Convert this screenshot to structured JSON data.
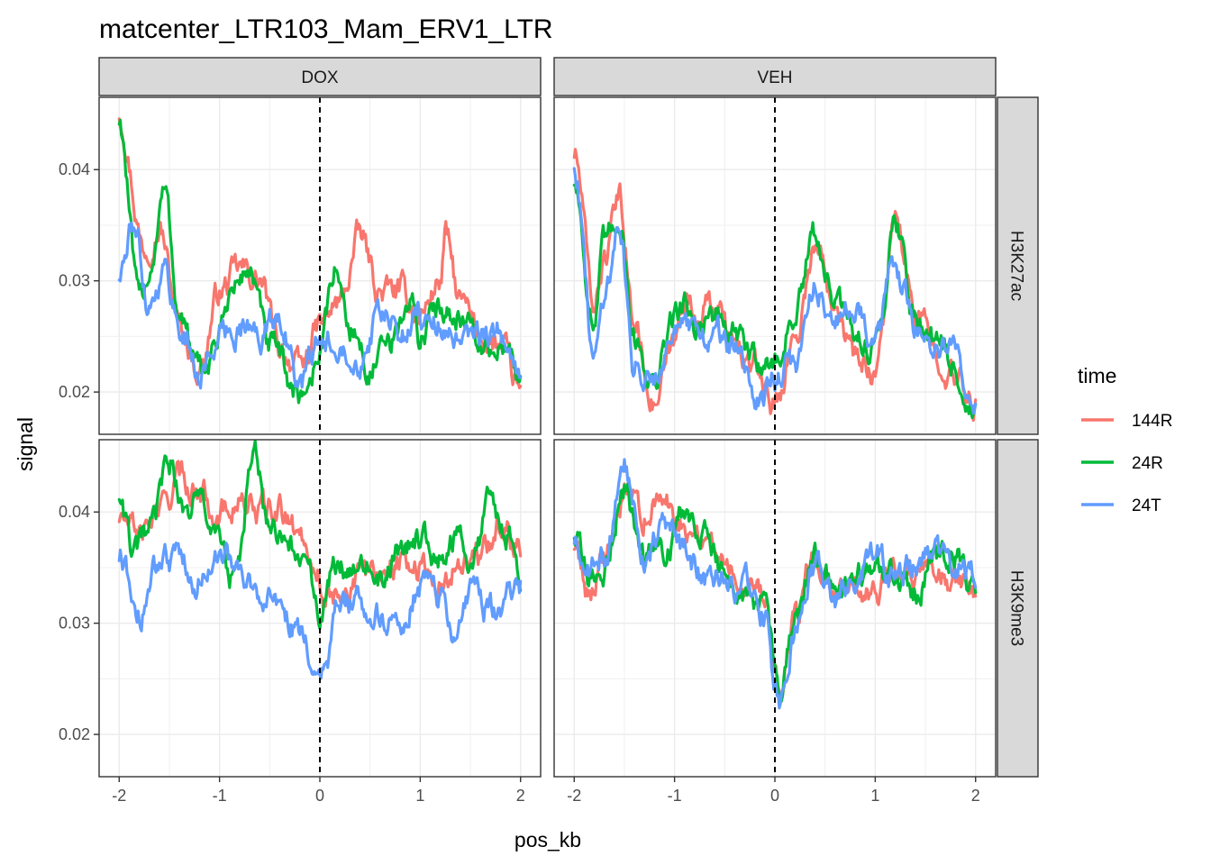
{
  "chart_data": {
    "type": "line",
    "title": "matcenter_LTR103_Mam_ERV1_LTR",
    "xlabel": "pos_kb",
    "ylabel": "signal",
    "xlim": [
      -2.2,
      2.2
    ],
    "x_ticks": [
      -2,
      -1,
      0,
      1,
      2
    ],
    "x_tick_labels": [
      "-2",
      "-1",
      "0",
      "1",
      "2"
    ],
    "y_ticks": [
      0.02,
      0.03,
      0.04
    ],
    "y_tick_labels": [
      "0.02",
      "0.03",
      "0.04"
    ],
    "vline_x": 0,
    "vline_style": "dashed",
    "grid": true,
    "legend": {
      "title": "time",
      "placement": "right",
      "entries": [
        "144R",
        "24R",
        "24T"
      ]
    },
    "colors": {
      "144R": "#F8766D",
      "24R": "#00BA38",
      "24T": "#619CFF"
    },
    "column_strips": [
      "DOX",
      "VEH"
    ],
    "row_strips": [
      "H3K27ac",
      "H3K9me3"
    ],
    "panels": [
      {
        "column": "DOX",
        "row": "H3K27ac",
        "ylim": [
          0.0162,
          0.0465
        ],
        "series": [
          {
            "name": "144R",
            "x": [
              -2,
              -1.75,
              -1.6,
              -1.4,
              -1.2,
              -1.0,
              -0.8,
              -0.6,
              -0.4,
              -0.2,
              0,
              0.2,
              0.4,
              0.6,
              0.8,
              1.0,
              1.2,
              1.25,
              1.4,
              1.6,
              1.8,
              2.0
            ],
            "values": [
              0.045,
              0.033,
              0.035,
              0.026,
              0.022,
              0.029,
              0.031,
              0.03,
              0.024,
              0.022,
              0.026,
              0.028,
              0.034,
              0.029,
              0.029,
              0.027,
              0.03,
              0.034,
              0.028,
              0.025,
              0.024,
              0.02
            ]
          },
          {
            "name": "24R",
            "x": [
              -2,
              -1.8,
              -1.7,
              -1.55,
              -1.4,
              -1.2,
              -1.0,
              -0.9,
              -0.7,
              -0.5,
              -0.2,
              -0.1,
              0,
              0.15,
              0.3,
              0.5,
              0.7,
              0.9,
              1.0,
              1.2,
              1.4,
              1.6,
              1.8,
              2.0
            ],
            "values": [
              0.0445,
              0.028,
              0.031,
              0.038,
              0.027,
              0.0215,
              0.025,
              0.029,
              0.031,
              0.024,
              0.0198,
              0.021,
              0.024,
              0.031,
              0.026,
              0.022,
              0.024,
              0.028,
              0.025,
              0.028,
              0.027,
              0.024,
              0.024,
              0.022
            ]
          },
          {
            "name": "24T",
            "x": [
              -2,
              -1.85,
              -1.7,
              -1.55,
              -1.4,
              -1.2,
              -1.0,
              -0.8,
              -0.6,
              -0.4,
              -0.2,
              0,
              0.2,
              0.4,
              0.6,
              0.8,
              1.0,
              1.2,
              1.4,
              1.6,
              1.8,
              2.0
            ],
            "values": [
              0.0305,
              0.035,
              0.028,
              0.031,
              0.026,
              0.0215,
              0.025,
              0.026,
              0.025,
              0.027,
              0.0205,
              0.024,
              0.025,
              0.023,
              0.027,
              0.025,
              0.027,
              0.026,
              0.024,
              0.025,
              0.025,
              0.021
            ]
          }
        ]
      },
      {
        "column": "VEH",
        "row": "H3K27ac",
        "ylim": [
          0.0162,
          0.0465
        ],
        "series": [
          {
            "name": "144R",
            "x": [
              -2,
              -1.8,
              -1.7,
              -1.55,
              -1.4,
              -1.2,
              -1.0,
              -0.9,
              -0.8,
              -0.6,
              -0.4,
              -0.2,
              0,
              0.2,
              0.4,
              0.6,
              0.8,
              1.0,
              1.2,
              1.4,
              1.6,
              1.8,
              2.0
            ],
            "values": [
              0.0415,
              0.028,
              0.032,
              0.037,
              0.026,
              0.019,
              0.024,
              0.029,
              0.027,
              0.028,
              0.024,
              0.022,
              0.019,
              0.025,
              0.033,
              0.029,
              0.023,
              0.022,
              0.035,
              0.027,
              0.024,
              0.021,
              0.019
            ]
          },
          {
            "name": "24R",
            "x": [
              -2,
              -1.8,
              -1.7,
              -1.55,
              -1.4,
              -1.2,
              -1.0,
              -0.9,
              -0.8,
              -0.6,
              -0.4,
              -0.2,
              0,
              0.2,
              0.4,
              0.6,
              0.8,
              1.0,
              1.2,
              1.4,
              1.6,
              1.8,
              2.0
            ],
            "values": [
              0.039,
              0.026,
              0.033,
              0.036,
              0.025,
              0.0205,
              0.027,
              0.028,
              0.026,
              0.027,
              0.025,
              0.023,
              0.0225,
              0.027,
              0.034,
              0.028,
              0.025,
              0.024,
              0.0355,
              0.027,
              0.025,
              0.022,
              0.018
            ]
          },
          {
            "name": "24T",
            "x": [
              -2,
              -1.8,
              -1.7,
              -1.55,
              -1.4,
              -1.2,
              -1.0,
              -0.8,
              -0.6,
              -0.4,
              -0.2,
              0,
              0.2,
              0.4,
              0.6,
              0.8,
              1.0,
              1.2,
              1.4,
              1.6,
              1.8,
              2.0
            ],
            "values": [
              0.0405,
              0.023,
              0.029,
              0.035,
              0.022,
              0.022,
              0.026,
              0.025,
              0.025,
              0.024,
              0.0195,
              0.0215,
              0.0225,
              0.03,
              0.026,
              0.028,
              0.025,
              0.031,
              0.026,
              0.024,
              0.0235,
              0.0185
            ]
          }
        ]
      },
      {
        "column": "DOX",
        "row": "H3K9me3",
        "ylim": [
          0.0162,
          0.0465
        ],
        "series": [
          {
            "name": "144R",
            "x": [
              -2,
              -1.8,
              -1.6,
              -1.4,
              -1.2,
              -1.0,
              -0.8,
              -0.6,
              -0.4,
              -0.2,
              -0.05,
              0.05,
              0.2,
              0.4,
              0.6,
              0.8,
              1.0,
              1.2,
              1.4,
              1.6,
              1.8,
              2.0
            ],
            "values": [
              0.0395,
              0.038,
              0.04,
              0.043,
              0.042,
              0.04,
              0.041,
              0.04,
              0.04,
              0.038,
              0.036,
              0.032,
              0.033,
              0.034,
              0.035,
              0.036,
              0.035,
              0.033,
              0.036,
              0.036,
              0.039,
              0.037
            ]
          },
          {
            "name": "24R",
            "x": [
              -2,
              -1.85,
              -1.7,
              -1.5,
              -1.35,
              -1.2,
              -1.0,
              -0.85,
              -0.65,
              -0.5,
              -0.3,
              -0.1,
              0,
              0.15,
              0.4,
              0.6,
              0.8,
              1.0,
              1.2,
              1.4,
              1.5,
              1.7,
              1.9,
              2.0
            ],
            "values": [
              0.0415,
              0.036,
              0.038,
              0.0445,
              0.04,
              0.041,
              0.037,
              0.034,
              0.045,
              0.038,
              0.037,
              0.034,
              0.031,
              0.0345,
              0.036,
              0.034,
              0.036,
              0.038,
              0.036,
              0.038,
              0.035,
              0.0405,
              0.038,
              0.035
            ]
          },
          {
            "name": "24T",
            "x": [
              -2,
              -1.8,
              -1.6,
              -1.4,
              -1.2,
              -1.0,
              -0.8,
              -0.6,
              -0.4,
              -0.2,
              0,
              0.05,
              0.2,
              0.4,
              0.6,
              0.8,
              1.0,
              1.2,
              1.3,
              1.5,
              1.7,
              1.9,
              2.0
            ],
            "values": [
              0.036,
              0.031,
              0.035,
              0.036,
              0.034,
              0.037,
              0.034,
              0.033,
              0.031,
              0.029,
              0.026,
              0.0265,
              0.0315,
              0.032,
              0.031,
              0.03,
              0.033,
              0.032,
              0.0285,
              0.033,
              0.031,
              0.0325,
              0.033
            ]
          }
        ]
      },
      {
        "column": "VEH",
        "row": "H3K9me3",
        "ylim": [
          0.0162,
          0.0465
        ],
        "series": [
          {
            "name": "144R",
            "x": [
              -2,
              -1.85,
              -1.7,
              -1.5,
              -1.3,
              -1.1,
              -0.9,
              -0.7,
              -0.5,
              -0.3,
              -0.1,
              0,
              0.05,
              0.2,
              0.4,
              0.6,
              0.8,
              1.0,
              1.2,
              1.4,
              1.6,
              1.8,
              2.0
            ],
            "values": [
              0.037,
              0.033,
              0.036,
              0.041,
              0.04,
              0.041,
              0.039,
              0.038,
              0.036,
              0.034,
              0.033,
              0.026,
              0.024,
              0.03,
              0.037,
              0.033,
              0.033,
              0.033,
              0.035,
              0.034,
              0.034,
              0.0335,
              0.033
            ]
          },
          {
            "name": "24R",
            "x": [
              -2,
              -1.85,
              -1.7,
              -1.5,
              -1.3,
              -1.1,
              -0.9,
              -0.7,
              -0.5,
              -0.3,
              -0.1,
              0,
              0.05,
              0.2,
              0.4,
              0.6,
              0.8,
              1.0,
              1.2,
              1.4,
              1.6,
              1.8,
              2.0
            ],
            "values": [
              0.038,
              0.034,
              0.035,
              0.042,
              0.036,
              0.037,
              0.04,
              0.039,
              0.034,
              0.032,
              0.032,
              0.026,
              0.024,
              0.03,
              0.036,
              0.033,
              0.034,
              0.035,
              0.034,
              0.033,
              0.036,
              0.036,
              0.0325
            ]
          },
          {
            "name": "24T",
            "x": [
              -2,
              -1.85,
              -1.7,
              -1.5,
              -1.3,
              -1.1,
              -0.9,
              -0.7,
              -0.5,
              -0.3,
              -0.1,
              0,
              0.05,
              0.2,
              0.4,
              0.6,
              0.8,
              1.0,
              1.2,
              1.4,
              1.6,
              1.8,
              2.0
            ],
            "values": [
              0.0375,
              0.035,
              0.036,
              0.044,
              0.036,
              0.039,
              0.036,
              0.034,
              0.034,
              0.033,
              0.031,
              0.025,
              0.023,
              0.029,
              0.035,
              0.032,
              0.034,
              0.036,
              0.034,
              0.035,
              0.036,
              0.035,
              0.034
            ]
          }
        ]
      }
    ]
  }
}
